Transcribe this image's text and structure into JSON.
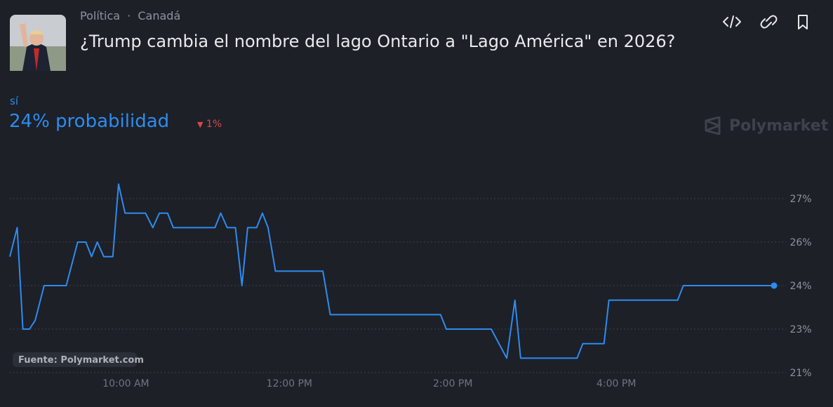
{
  "header": {
    "tags": [
      "Política",
      "Canadá"
    ],
    "title": "¿Trump cambia el nombre del lago Ontario a \"Lago América\" en 2026?",
    "probability": "24% probabilidad",
    "change": "1%",
    "brand": "Polymarket",
    "source": "Fuente: Polymarket.com"
  },
  "chart_data": {
    "type": "line",
    "x": [
      8.58,
      8.67,
      8.74,
      8.82,
      8.89,
      9.0,
      9.27,
      9.41,
      9.51,
      9.58,
      9.65,
      9.73,
      9.84,
      9.91,
      9.99,
      10.24,
      10.33,
      10.41,
      10.51,
      10.58,
      11.09,
      11.16,
      11.24,
      11.34,
      11.42,
      11.49,
      11.6,
      11.67,
      11.74,
      11.83,
      12.41,
      12.5,
      13.85,
      13.92,
      14.47,
      14.66,
      14.76,
      14.83,
      15.52,
      15.59,
      15.85,
      15.91,
      16.75,
      16.82,
      17.93
    ],
    "series": [
      {
        "name": "sí",
        "color": "#2d8cf0",
        "values": [
          25.0,
          26.0,
          22.5,
          22.5,
          22.8,
          24.0,
          24.0,
          25.5,
          25.5,
          25.0,
          25.5,
          25.0,
          25.0,
          27.5,
          26.5,
          26.5,
          26.0,
          26.5,
          26.5,
          26.0,
          26.0,
          26.5,
          26.0,
          26.0,
          24.0,
          26.0,
          26.0,
          26.5,
          26.0,
          24.5,
          24.5,
          23.0,
          23.0,
          22.5,
          22.5,
          21.5,
          23.5,
          21.5,
          21.5,
          22.0,
          22.0,
          23.5,
          23.5,
          24.0,
          24.0
        ]
      }
    ],
    "xlim": [
      8.58,
      17.93
    ],
    "xticks": [
      {
        "value": 10,
        "label": "10:00 AM"
      },
      {
        "value": 12,
        "label": "12:00 PM"
      },
      {
        "value": 14,
        "label": "2:00 PM"
      },
      {
        "value": 16,
        "label": "4:00 PM"
      }
    ],
    "ylim": [
      20.5,
      28
    ],
    "yticks": [
      {
        "value": 27,
        "label": "27%"
      },
      {
        "value": 25.5,
        "label": "26%"
      },
      {
        "value": 24,
        "label": "24%"
      },
      {
        "value": 22.5,
        "label": "23%"
      },
      {
        "value": 21,
        "label": "21%"
      }
    ],
    "grid": true
  }
}
